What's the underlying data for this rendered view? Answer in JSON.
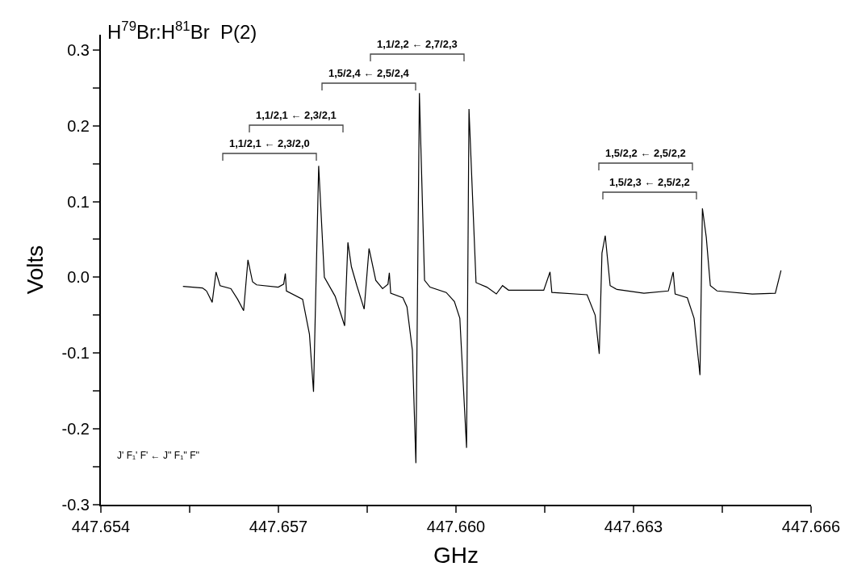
{
  "chart_data": {
    "type": "line",
    "title": "H$^{79}$Br:H$^{81}$Br  P(2)",
    "xlabel": "GHz",
    "ylabel": "Volts",
    "x": [
      447.655387,
      447.655716,
      447.655785,
      447.655881,
      447.655946,
      447.656014,
      447.656197,
      447.656311,
      447.656412,
      447.656485,
      447.656563,
      447.656632,
      447.656997,
      447.657089,
      447.657117,
      447.657135,
      447.657409,
      447.657524,
      447.657593,
      447.65768,
      447.657776,
      447.657958,
      447.658119,
      447.658174,
      447.658233,
      447.658325,
      447.658449,
      447.658531,
      447.658645,
      447.65876,
      447.658851,
      447.658874,
      447.658897,
      447.659103,
      447.659172,
      447.659263,
      447.659323,
      447.659382,
      447.659469,
      447.659561,
      447.659835,
      447.659973,
      447.660065,
      447.660179,
      447.66022,
      447.660339,
      447.660522,
      447.660682,
      447.660787,
      447.660888,
      447.661483,
      447.661589,
      447.66162,
      447.662215,
      447.662352,
      447.662421,
      447.662467,
      447.662522,
      447.662605,
      447.662719,
      447.663176,
      447.663588,
      447.66367,
      447.663703,
      447.663909,
      447.664023,
      447.664123,
      447.664164,
      447.664229,
      447.664298,
      447.664411,
      447.665007,
      447.665396,
      447.665492
    ],
    "series": [
      {
        "color": "#000000",
        "values": [
          -0.012,
          -0.014,
          -0.018,
          -0.033,
          0.007,
          -0.011,
          -0.015,
          -0.029,
          -0.044,
          0.023,
          -0.006,
          -0.01,
          -0.013,
          -0.009,
          0.005,
          -0.018,
          -0.029,
          -0.075,
          -0.151,
          0.147,
          0.0,
          -0.025,
          -0.064,
          0.046,
          0.014,
          -0.011,
          -0.042,
          0.038,
          -0.004,
          -0.015,
          -0.009,
          0.006,
          -0.021,
          -0.027,
          -0.039,
          -0.096,
          -0.245,
          0.243,
          -0.004,
          -0.013,
          -0.02,
          -0.032,
          -0.054,
          -0.225,
          0.222,
          -0.007,
          -0.013,
          -0.022,
          -0.011,
          -0.017,
          -0.017,
          0.007,
          -0.02,
          -0.023,
          -0.05,
          -0.101,
          0.032,
          0.055,
          -0.011,
          -0.016,
          -0.021,
          -0.018,
          0.007,
          -0.022,
          -0.027,
          -0.054,
          -0.129,
          0.091,
          0.053,
          -0.011,
          -0.018,
          -0.022,
          -0.021,
          0.009
        ]
      }
    ],
    "xlim": [
      447.654,
      447.666
    ],
    "xticks": [
      {
        "value": 447.654,
        "label": "447.654"
      },
      {
        "value": 447.6555,
        "label": null
      },
      {
        "value": 447.657,
        "label": "447.657"
      },
      {
        "value": 447.6585,
        "label": null
      },
      {
        "value": 447.66,
        "label": "447.660"
      },
      {
        "value": 447.6615,
        "label": null
      },
      {
        "value": 447.663,
        "label": "447.663"
      },
      {
        "value": 447.6645,
        "label": null
      },
      {
        "value": 447.666,
        "label": "447.666"
      }
    ],
    "ylim": [
      -0.3,
      0.32
    ],
    "yticks": [
      {
        "value": -0.3,
        "label": "-0.3"
      },
      {
        "value": -0.25,
        "label": null
      },
      {
        "value": -0.2,
        "label": "-0.2"
      },
      {
        "value": -0.15,
        "label": null
      },
      {
        "value": -0.1,
        "label": "-0.1"
      },
      {
        "value": -0.05,
        "label": null
      },
      {
        "value": 0,
        "label": "0.0"
      },
      {
        "value": 0.05,
        "label": null
      },
      {
        "value": 0.1,
        "label": "0.1"
      },
      {
        "value": 0.15,
        "label": null
      },
      {
        "value": 0.2,
        "label": "0.2"
      },
      {
        "value": 0.25,
        "label": null
      },
      {
        "value": 0.3,
        "label": "0.3"
      }
    ],
    "marker": "none",
    "line_style": "solid",
    "annotations": [
      "1,1/2,1 ← 2,3/2,0",
      "1,1/2,1 ← 2,3/2,1",
      "1,5/2,4 ← 2,5/2,4",
      "1,1/2,2 ← 2,7/2,3",
      "1,5/2,2 ← 2,5/2,2",
      "1,5/2,3 ← 2,5/2,2",
      "J' F₁' F' ← J'' F₁'' F''"
    ]
  }
}
